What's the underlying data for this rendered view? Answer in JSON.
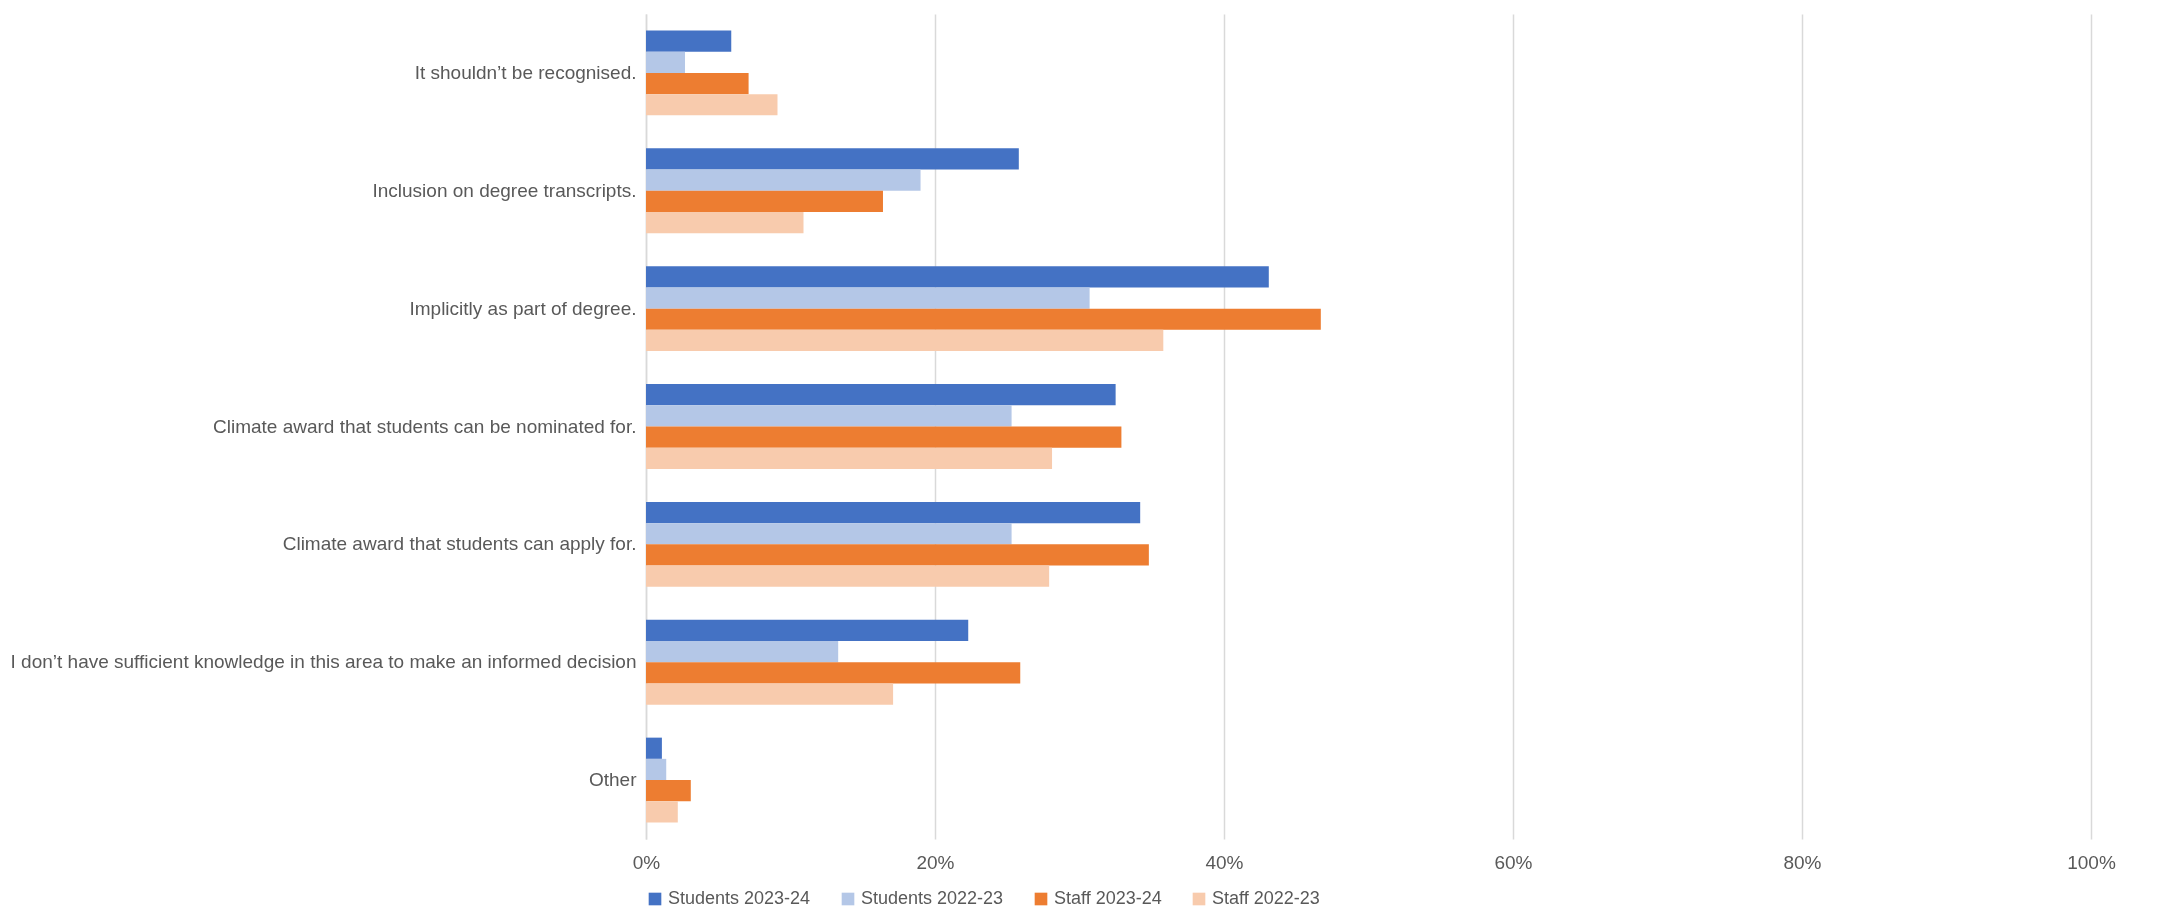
{
  "chart_data": {
    "type": "bar",
    "orientation": "horizontal",
    "categories": [
      "It shouldn’t be recognised.",
      "Inclusion on degree transcripts.",
      "Implicitly as part of degree.",
      "Climate award that students can be nominated for.",
      "Climate award that students can apply for.",
      "I don’t have sufficient knowledge in this area to make an informed decision",
      "Other"
    ],
    "series": [
      {
        "name": "Students 2023-24",
        "color": "#4472c4",
        "values": [
          5.9,
          25.8,
          43.1,
          32.5,
          34.2,
          22.3,
          1.1
        ]
      },
      {
        "name": "Students 2022-23",
        "color": "#b4c7e7",
        "values": [
          2.7,
          19.0,
          30.7,
          25.3,
          25.3,
          13.3,
          1.4
        ]
      },
      {
        "name": "Staff 2023-24",
        "color": "#ed7d31",
        "values": [
          7.1,
          16.4,
          46.7,
          32.9,
          34.8,
          25.9,
          3.1
        ]
      },
      {
        "name": "Staff 2022-23",
        "color": "#f8cbad",
        "values": [
          9.1,
          10.9,
          35.8,
          28.1,
          27.9,
          17.1,
          2.2
        ]
      }
    ],
    "xlim": [
      0,
      100
    ],
    "xticks": [
      {
        "value": 0,
        "label": "0%"
      },
      {
        "value": 20,
        "label": "20%"
      },
      {
        "value": 40,
        "label": "40%"
      },
      {
        "value": 60,
        "label": "60%"
      },
      {
        "value": 80,
        "label": "80%"
      },
      {
        "value": 100,
        "label": "100%"
      }
    ],
    "grid": "x",
    "legend": "bottom"
  }
}
